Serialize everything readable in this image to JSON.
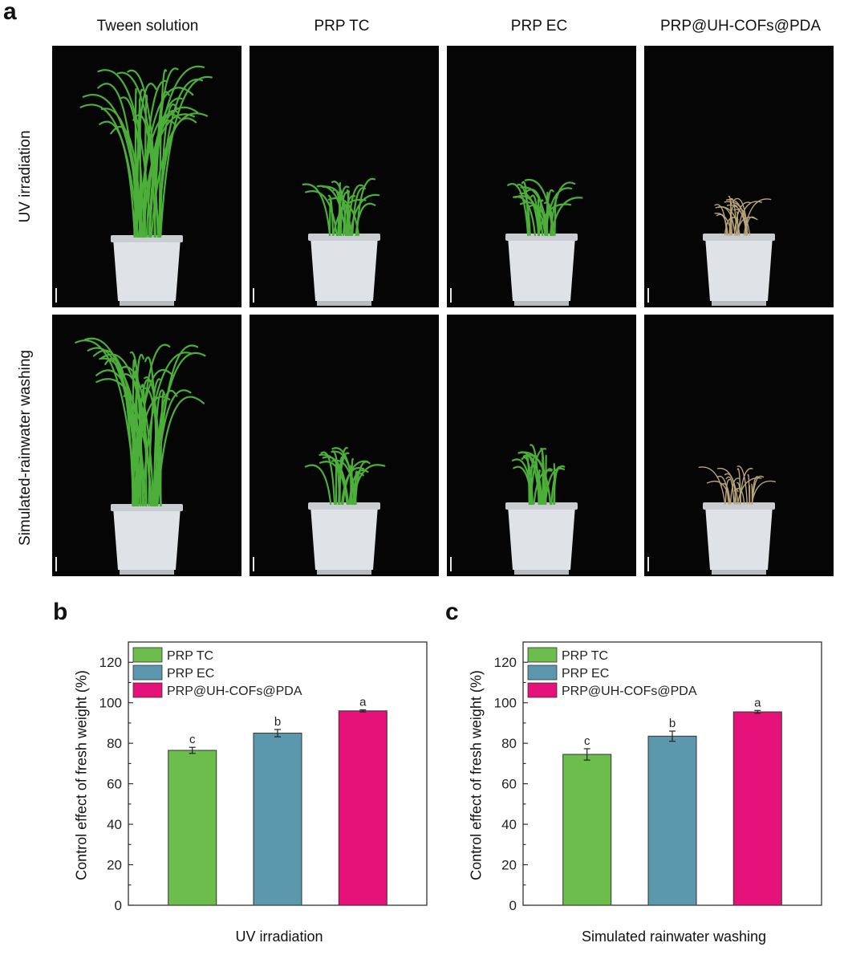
{
  "panel_a": {
    "letter": "a",
    "columns": [
      "Tween solution",
      "PRP TC",
      "PRP EC",
      "PRP@UH-COFs@PDA"
    ],
    "rows": [
      "UV irradiation",
      "Simulated-rainwater washing"
    ],
    "plant_states": [
      [
        "tall-green",
        "short-green",
        "short-green",
        "dead-straw"
      ],
      [
        "tall-green",
        "short-green",
        "short-green",
        "dead-straw"
      ]
    ],
    "colors": {
      "background": "#050505",
      "pot": "#dfe2e6",
      "green": "#4caf3a",
      "straw": "#b9a57a"
    }
  },
  "chart_data": [
    {
      "letter": "b",
      "type": "bar",
      "categories": [
        "PRP TC",
        "PRP EC",
        "PRP@UH-COFs@PDA"
      ],
      "values": [
        76.5,
        85.0,
        96.0
      ],
      "errors": [
        1.5,
        1.8,
        0.5
      ],
      "letters": [
        "c",
        "b",
        "a"
      ],
      "colors": [
        "#6cbd4b",
        "#5b97ad",
        "#e5127a"
      ],
      "xlabel": "UV irradiation",
      "ylabel": "Control effect of fresh weight (%)",
      "ylim": [
        0,
        130
      ],
      "yticks": [
        "0",
        "20",
        "40",
        "60",
        "80",
        "100",
        "120"
      ],
      "legend": [
        "PRP TC",
        "PRP EC",
        "PRP@UH-COFs@PDA"
      ],
      "legend_position": "top-left",
      "grid": false
    },
    {
      "letter": "c",
      "type": "bar",
      "categories": [
        "PRP TC",
        "PRP EC",
        "PRP@UH-COFs@PDA"
      ],
      "values": [
        74.5,
        83.5,
        95.5
      ],
      "errors": [
        2.8,
        2.5,
        0.7
      ],
      "letters": [
        "c",
        "b",
        "a"
      ],
      "colors": [
        "#6cbd4b",
        "#5b97ad",
        "#e5127a"
      ],
      "xlabel": "Simulated rainwater washing",
      "ylabel": "Control effect of fresh weight (%)",
      "ylim": [
        0,
        130
      ],
      "yticks": [
        "0",
        "20",
        "40",
        "60",
        "80",
        "100",
        "120"
      ],
      "legend": [
        "PRP TC",
        "PRP EC",
        "PRP@UH-COFs@PDA"
      ],
      "legend_position": "top-left",
      "grid": false
    }
  ]
}
